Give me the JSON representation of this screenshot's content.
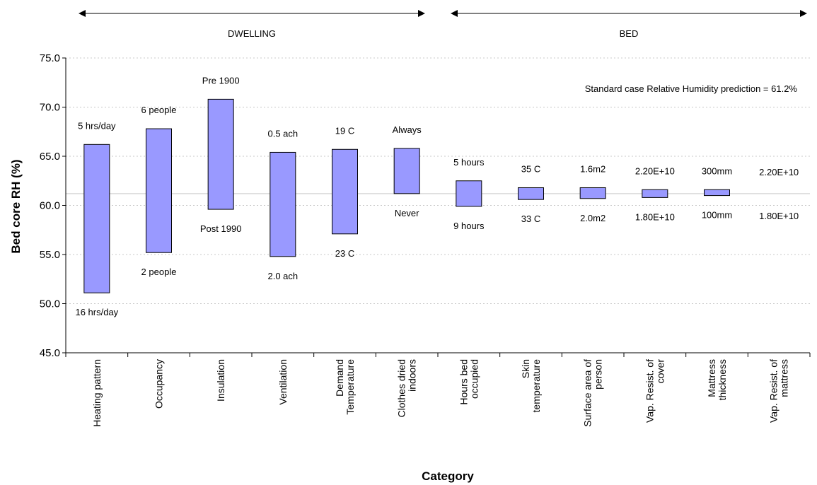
{
  "chart_data": {
    "type": "bar",
    "subtype": "floating-range",
    "ylabel": "Bed core RH (%)",
    "xlabel": "Category",
    "ylim": [
      45.0,
      75.0
    ],
    "yticks": [
      "45.0",
      "50.0",
      "55.0",
      "60.0",
      "65.0",
      "70.0",
      "75.0"
    ],
    "grid": true,
    "reference_line": 61.2,
    "annotation": "Standard case Relative Humidity prediction = 61.2%",
    "groups": [
      {
        "label": "DWELLING",
        "start": 0,
        "end": 5
      },
      {
        "label": "BED",
        "start": 6,
        "end": 11
      }
    ],
    "categories": [
      [
        "Heating pattern"
      ],
      [
        "Occupancy"
      ],
      [
        "Insulation"
      ],
      [
        "Ventilation"
      ],
      [
        "Demand",
        "Temperature"
      ],
      [
        "Clothes dried",
        "indoors"
      ],
      [
        "Hours bed",
        "occupied"
      ],
      [
        "Skin",
        "temperature"
      ],
      [
        "Surface area of",
        "person"
      ],
      [
        "Vap. Resist. of",
        "cover"
      ],
      [
        "Mattress",
        "thickness"
      ],
      [
        "Vap. Resist. of",
        "mattress"
      ]
    ],
    "ranges": [
      {
        "high": 66.2,
        "low": 51.1,
        "high_label": "5 hrs/day",
        "low_label": "16 hrs/day"
      },
      {
        "high": 67.8,
        "low": 55.2,
        "high_label": "6 people",
        "low_label": "2 people"
      },
      {
        "high": 70.8,
        "low": 59.6,
        "high_label": "Pre 1900",
        "low_label": "Post 1990"
      },
      {
        "high": 65.4,
        "low": 54.8,
        "high_label": "0.5 ach",
        "low_label": "2.0 ach"
      },
      {
        "high": 65.7,
        "low": 57.1,
        "high_label": "19 C",
        "low_label": "23 C"
      },
      {
        "high": 65.8,
        "low": 61.2,
        "high_label": "Always",
        "low_label": "Never"
      },
      {
        "high": 62.5,
        "low": 59.9,
        "high_label": "5 hours",
        "low_label": "9 hours"
      },
      {
        "high": 61.8,
        "low": 60.6,
        "high_label": "35 C",
        "low_label": "33 C"
      },
      {
        "high": 61.8,
        "low": 60.7,
        "high_label": "1.6m2",
        "low_label": "2.0m2"
      },
      {
        "high": 61.6,
        "low": 60.8,
        "high_label": "2.20E+10",
        "low_label": "1.80E+10"
      },
      {
        "high": 61.6,
        "low": 61.0,
        "high_label": "300mm",
        "low_label": "100mm"
      },
      {
        "high": 61.2,
        "low": 61.2,
        "high_label": "2.20E+10",
        "low_label": "1.80E+10"
      }
    ],
    "colors": {
      "bar_fill": "#9999ff",
      "bar_stroke": "#000000",
      "grid": "#c8c8c8",
      "reference": "#d9d9d9"
    }
  }
}
